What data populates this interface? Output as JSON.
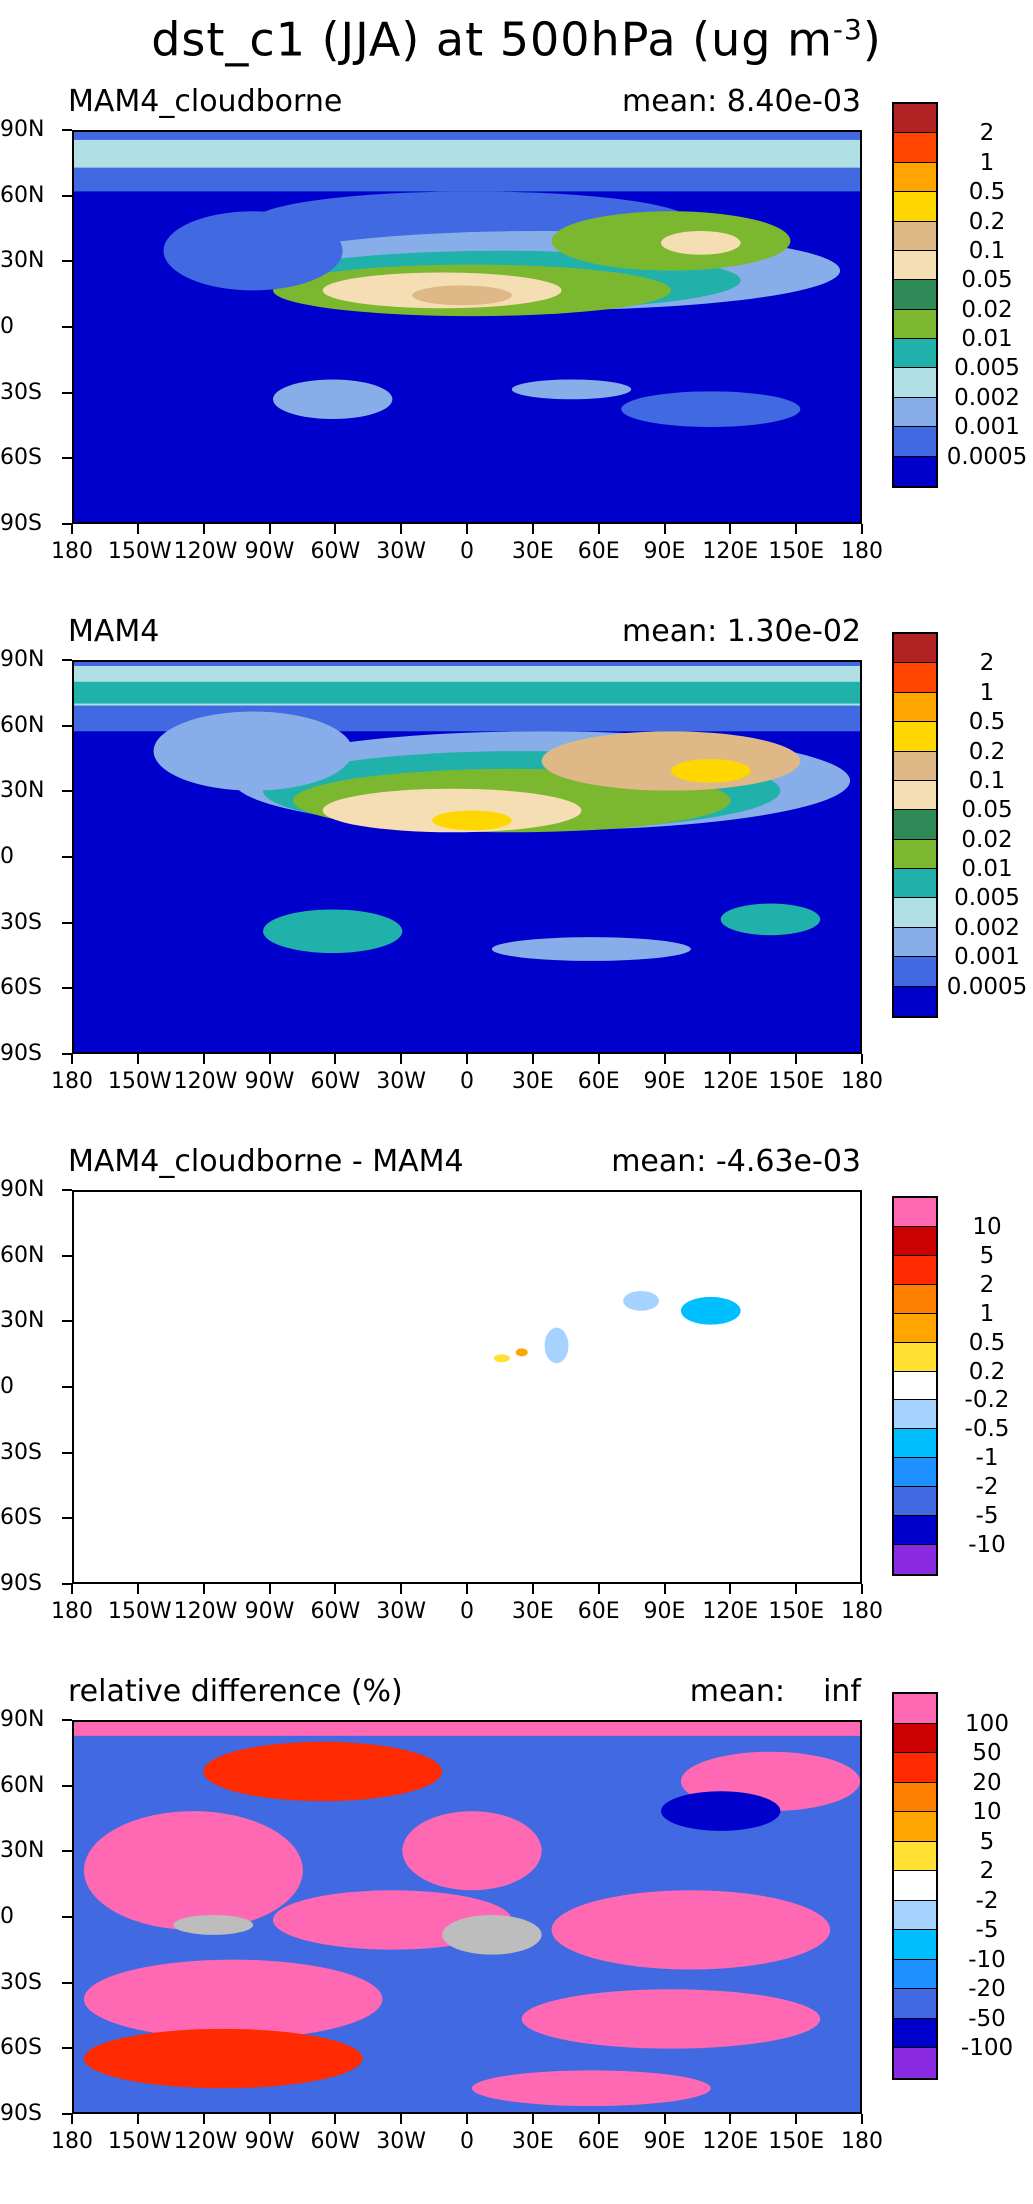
{
  "title": {
    "text": "dst_c1 (JJA) at 500hPa (ug m",
    "exponent": "-3",
    "close": ")"
  },
  "lat_labels": [
    "90N",
    "60N",
    "30N",
    "0",
    "30S",
    "60S",
    "90S"
  ],
  "lon_labels": [
    "180",
    "150W",
    "120W",
    "90W",
    "60W",
    "30W",
    "0",
    "30E",
    "60E",
    "90E",
    "120E",
    "150E",
    "180"
  ],
  "panels": [
    {
      "label": "MAM4_cloudborne",
      "mean": "mean: 8.40e-03",
      "colors": [
        "#b22222",
        "#ff4500",
        "#ffa500",
        "#ffd700",
        "#deb887",
        "#f5deb3",
        "#2e8b57",
        "#7cb82f",
        "#20b2aa",
        "#b0e0e6",
        "#87aee8",
        "#4169e1",
        "#0000cd"
      ],
      "levels": [
        "2",
        "1",
        "0.5",
        "0.2",
        "0.1",
        "0.05",
        "0.02",
        "0.01",
        "0.005",
        "0.002",
        "0.001",
        "0.0005"
      ]
    },
    {
      "label": "MAM4",
      "mean": "mean: 1.30e-02",
      "colors": [
        "#b22222",
        "#ff4500",
        "#ffa500",
        "#ffd700",
        "#deb887",
        "#f5deb3",
        "#2e8b57",
        "#7cb82f",
        "#20b2aa",
        "#b0e0e6",
        "#87aee8",
        "#4169e1",
        "#0000cd"
      ],
      "levels": [
        "2",
        "1",
        "0.5",
        "0.2",
        "0.1",
        "0.05",
        "0.02",
        "0.01",
        "0.005",
        "0.002",
        "0.001",
        "0.0005"
      ]
    },
    {
      "label": "MAM4_cloudborne - MAM4",
      "mean": "mean: -4.63e-03",
      "colors": [
        "#ff69b4",
        "#cc0000",
        "#ff2a00",
        "#ff7f00",
        "#ffa500",
        "#ffe033",
        "#ffffff",
        "#a6d2ff",
        "#00bfff",
        "#1e90ff",
        "#4169e1",
        "#0000cd",
        "#8a2be2"
      ],
      "levels": [
        "10",
        "5",
        "2",
        "1",
        "0.5",
        "0.2",
        "-0.2",
        "-0.5",
        "-1",
        "-2",
        "-5",
        "-10"
      ]
    },
    {
      "label": "relative difference (%)",
      "mean": "mean:    inf",
      "colors": [
        "#ff69b4",
        "#cc0000",
        "#ff2a00",
        "#ff7f00",
        "#ffa500",
        "#ffe033",
        "#ffffff",
        "#a6d2ff",
        "#00bfff",
        "#1e90ff",
        "#4169e1",
        "#0000cd",
        "#8a2be2"
      ],
      "levels": [
        "100",
        "50",
        "20",
        "10",
        "5",
        "2",
        "-2",
        "-5",
        "-10",
        "-20",
        "-50",
        "-100"
      ]
    }
  ]
}
